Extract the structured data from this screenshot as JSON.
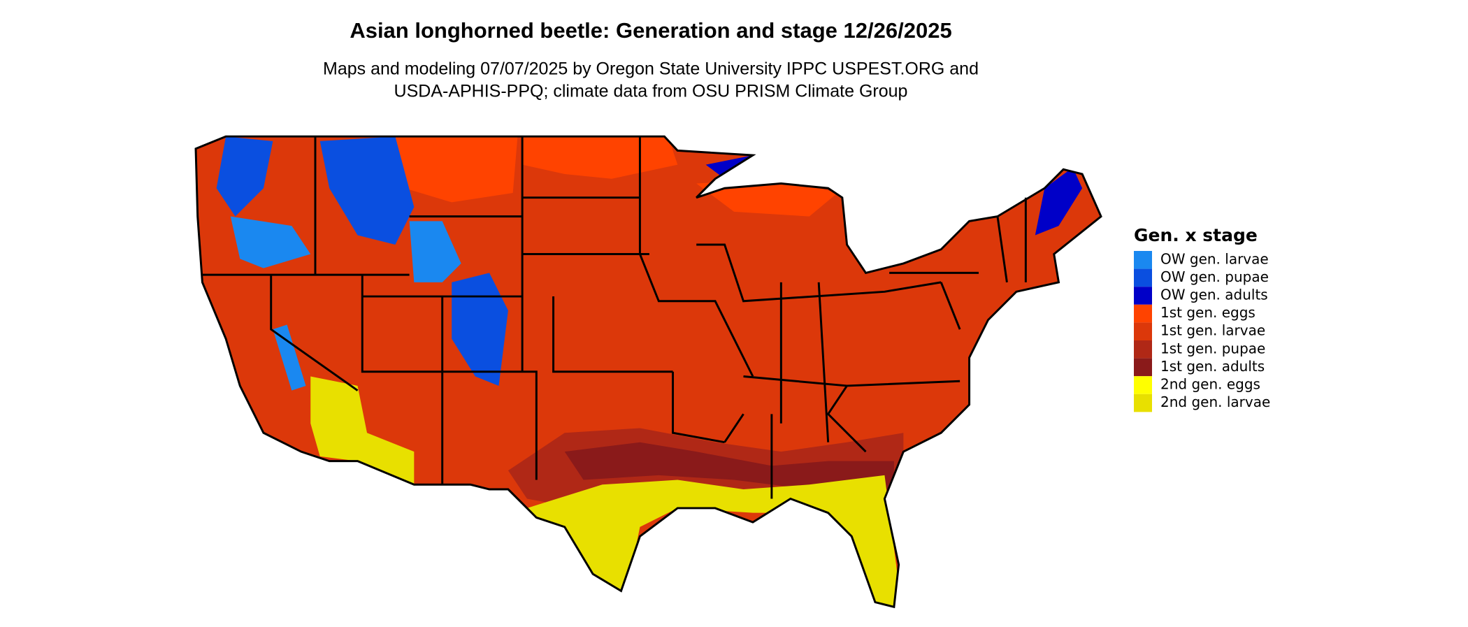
{
  "header": {
    "title": "Asian longhorned beetle: Generation and stage 12/26/2025",
    "subtitle": [
      "Maps and modeling 07/07/2025 by Oregon State University IPPC USPEST.ORG and",
      "USDA-APHIS-PPQ; climate data from OSU PRISM Climate Group"
    ]
  },
  "legend": {
    "title": "Gen. x stage",
    "items": [
      {
        "label": "OW gen. larvae",
        "color": "#1a88f0"
      },
      {
        "label": "OW gen. pupae",
        "color": "#0a4fe0"
      },
      {
        "label": "OW gen. adults",
        "color": "#0000c8"
      },
      {
        "label": "1st gen. eggs",
        "color": "#ff4300"
      },
      {
        "label": "1st gen. larvae",
        "color": "#dc380a"
      },
      {
        "label": "1st gen. pupae",
        "color": "#b02816"
      },
      {
        "label": "1st gen. adults",
        "color": "#8a1a1a"
      },
      {
        "label": "2nd gen. eggs",
        "color": "#ffff00"
      },
      {
        "label": "2nd gen. larvae",
        "color": "#e8e000"
      }
    ]
  }
}
